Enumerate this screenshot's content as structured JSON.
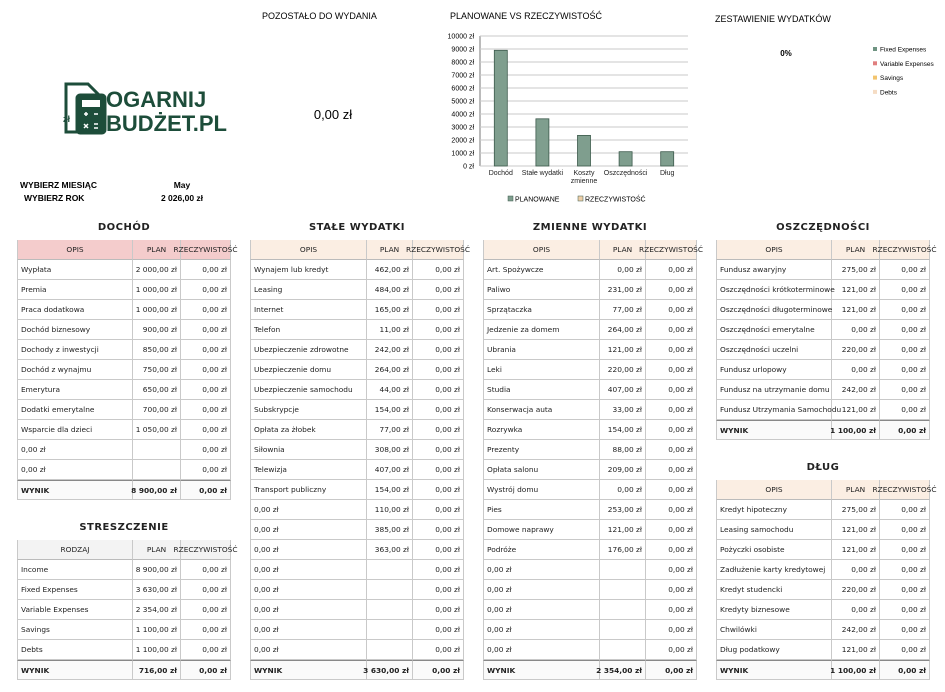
{
  "header": {
    "remaining_title": "POZOSTAŁO DO WYDANIA",
    "remaining_value": "0,00 zł",
    "month_label": "WYBIERZ MIESIĄC",
    "month": "May",
    "year_label": "WYBIERZ ROK",
    "year": "2 026,00 zł"
  },
  "logo": {
    "icon_text": "zł",
    "line1": "OGARNIJ",
    "line2": "BUDŻET.PL"
  },
  "chart_data": [
    {
      "type": "bar",
      "title": "PLANOWANE VS RZECZYWISTOŚĆ",
      "categories": [
        "Dochód",
        "Stałe wydatki",
        "Koszty zmienne",
        "Oszczędności",
        "Dług"
      ],
      "series": [
        {
          "name": "PLANOWANE",
          "color": "#7f9e8e",
          "values": [
            8900,
            3630,
            2354,
            1100,
            1100
          ]
        },
        {
          "name": "RZECZYWISTOŚĆ",
          "color": "#efcfa8",
          "values": [
            0,
            0,
            0,
            0,
            0
          ]
        }
      ],
      "ylim": [
        0,
        10000
      ],
      "yticks": [
        {
          "value": 0,
          "label": "0 zł"
        },
        {
          "value": 1000,
          "label": "1000 zł"
        },
        {
          "value": 2000,
          "label": "2000 zł"
        },
        {
          "value": 3000,
          "label": "3000 zł"
        },
        {
          "value": 4000,
          "label": "4000 zł"
        },
        {
          "value": 5000,
          "label": "5000 zł"
        },
        {
          "value": 6000,
          "label": "6000 zł"
        },
        {
          "value": 7000,
          "label": "7000 zł"
        },
        {
          "value": 8000,
          "label": "8000 zł"
        },
        {
          "value": 9000,
          "label": "9000 zł"
        },
        {
          "value": 10000,
          "label": "10000 zł"
        }
      ],
      "grid": true,
      "legend": "bottom"
    },
    {
      "type": "pie",
      "title": "ZESTAWIENIE WYDATKÓW",
      "categories": [
        "Fixed Expenses",
        "Variable Expenses",
        "Savings",
        "Debts"
      ],
      "values": [
        0,
        0,
        0,
        0
      ],
      "colors": [
        "#6f9482",
        "#e07f7f",
        "#f2c46e",
        "#f5dcc4"
      ],
      "center_label": "0%",
      "legend": "right"
    }
  ],
  "tables": [
    {
      "title": "DOCHÓD",
      "headers": [
        "OPIS",
        "PLAN",
        "RZECZYWISTOŚĆ"
      ],
      "rows": [
        [
          "Wypłata",
          "2 000,00 zł",
          "0,00 zł"
        ],
        [
          "Premia",
          "1 000,00 zł",
          "0,00 zł"
        ],
        [
          "Praca dodatkowa",
          "1 000,00 zł",
          "0,00 zł"
        ],
        [
          "Dochód biznesowy",
          "900,00 zł",
          "0,00 zł"
        ],
        [
          "Dochody z inwestycji",
          "850,00 zł",
          "0,00 zł"
        ],
        [
          "Dochód z wynajmu",
          "750,00 zł",
          "0,00 zł"
        ],
        [
          "Emerytura",
          "650,00 zł",
          "0,00 zł"
        ],
        [
          "Dodatki emerytalne",
          "700,00 zł",
          "0,00 zł"
        ],
        [
          "Wsparcie dla dzieci",
          "1 050,00 zł",
          "0,00 zł"
        ],
        [
          "0,00 zł",
          null,
          "0,00 zł"
        ],
        [
          "0,00 zł",
          null,
          "0,00 zł"
        ]
      ],
      "total": [
        "WYNIK",
        "8 900,00 zł",
        "0,00 zł"
      ]
    },
    {
      "title": "STRESZCZENIE",
      "headers": [
        "RODZAJ",
        "PLAN",
        "RZECZYWISTOŚĆ"
      ],
      "rows": [
        [
          "Income",
          "8 900,00 zł",
          "0,00 zł"
        ],
        [
          "Fixed Expenses",
          "3 630,00 zł",
          "0,00 zł"
        ],
        [
          "Variable Expenses",
          "2 354,00 zł",
          "0,00 zł"
        ],
        [
          "Savings",
          "1 100,00 zł",
          "0,00 zł"
        ],
        [
          "Debts",
          "1 100,00 zł",
          "0,00 zł"
        ]
      ],
      "total": [
        "WYNIK",
        "716,00 zł",
        "0,00 zł"
      ]
    },
    {
      "title": "STAŁE WYDATKI",
      "headers": [
        "OPIS",
        "PLAN",
        "RZECZYWISTOŚĆ"
      ],
      "rows": [
        [
          "Wynajem lub kredyt",
          "462,00 zł",
          "0,00 zł"
        ],
        [
          "Leasing",
          "484,00 zł",
          "0,00 zł"
        ],
        [
          "Internet",
          "165,00 zł",
          "0,00 zł"
        ],
        [
          "Telefon",
          "11,00 zł",
          "0,00 zł"
        ],
        [
          "Ubezpieczenie zdrowotne",
          "242,00 zł",
          "0,00 zł"
        ],
        [
          "Ubezpieczenie domu",
          "264,00 zł",
          "0,00 zł"
        ],
        [
          "Ubezpieczenie samochodu",
          "44,00 zł",
          "0,00 zł"
        ],
        [
          "Subskrypcje",
          "154,00 zł",
          "0,00 zł"
        ],
        [
          "Opłata za żłobek",
          "77,00 zł",
          "0,00 zł"
        ],
        [
          "Siłownia",
          "308,00 zł",
          "0,00 zł"
        ],
        [
          "Telewizja",
          "407,00 zł",
          "0,00 zł"
        ],
        [
          "Transport publiczny",
          "154,00 zł",
          "0,00 zł"
        ],
        [
          "0,00 zł",
          "110,00 zł",
          "0,00 zł"
        ],
        [
          "0,00 zł",
          "385,00 zł",
          "0,00 zł"
        ],
        [
          "0,00 zł",
          "363,00 zł",
          "0,00 zł"
        ],
        [
          "0,00 zł",
          null,
          "0,00 zł"
        ],
        [
          "0,00 zł",
          null,
          "0,00 zł"
        ],
        [
          "0,00 zł",
          null,
          "0,00 zł"
        ],
        [
          "0,00 zł",
          null,
          "0,00 zł"
        ],
        [
          "0,00 zł",
          null,
          "0,00 zł"
        ]
      ],
      "total": [
        "WYNIK",
        "3 630,00 zł",
        "0,00 zł"
      ]
    },
    {
      "title": "ZMIENNE WYDATKI",
      "headers": [
        "OPIS",
        "PLAN",
        "RZECZYWISTOŚĆ"
      ],
      "rows": [
        [
          "Art. Spożywcze",
          "0,00 zł",
          "0,00 zł"
        ],
        [
          "Paliwo",
          "231,00 zł",
          "0,00 zł"
        ],
        [
          "Sprzątaczka",
          "77,00 zł",
          "0,00 zł"
        ],
        [
          "Jedzenie za domem",
          "264,00 zł",
          "0,00 zł"
        ],
        [
          "Ubrania",
          "121,00 zł",
          "0,00 zł"
        ],
        [
          "Leki",
          "220,00 zł",
          "0,00 zł"
        ],
        [
          "Studia",
          "407,00 zł",
          "0,00 zł"
        ],
        [
          "Konserwacja auta",
          "33,00 zł",
          "0,00 zł"
        ],
        [
          "Rozrywka",
          "154,00 zł",
          "0,00 zł"
        ],
        [
          "Prezenty",
          "88,00 zł",
          "0,00 zł"
        ],
        [
          "Opłata salonu",
          "209,00 zł",
          "0,00 zł"
        ],
        [
          "Wystrój domu",
          "0,00 zł",
          "0,00 zł"
        ],
        [
          "Pies",
          "253,00 zł",
          "0,00 zł"
        ],
        [
          "Domowe naprawy",
          "121,00 zł",
          "0,00 zł"
        ],
        [
          "Podróże",
          "176,00 zł",
          "0,00 zł"
        ],
        [
          "0,00 zł",
          null,
          "0,00 zł"
        ],
        [
          "0,00 zł",
          null,
          "0,00 zł"
        ],
        [
          "0,00 zł",
          null,
          "0,00 zł"
        ],
        [
          "0,00 zł",
          null,
          "0,00 zł"
        ],
        [
          "0,00 zł",
          null,
          "0,00 zł"
        ]
      ],
      "total": [
        "WYNIK",
        "2 354,00 zł",
        "0,00 zł"
      ]
    },
    {
      "title": "OSZCZĘDNOŚCI",
      "headers": [
        "OPIS",
        "PLAN",
        "RZECZYWISTOŚĆ"
      ],
      "rows": [
        [
          "Fundusz awaryjny",
          "275,00 zł",
          "0,00 zł"
        ],
        [
          "Oszczędności krótkoterminowe",
          "121,00 zł",
          "0,00 zł"
        ],
        [
          "Oszczędności długoterminowe",
          "121,00 zł",
          "0,00 zł"
        ],
        [
          "Oszczędności emerytalne",
          "0,00 zł",
          "0,00 zł"
        ],
        [
          "Oszczędności uczelni",
          "220,00 zł",
          "0,00 zł"
        ],
        [
          "Fundusz urlopowy",
          "0,00 zł",
          "0,00 zł"
        ],
        [
          "Fundusz na utrzymanie domu",
          "242,00 zł",
          "0,00 zł"
        ],
        [
          "Fundusz Utrzymania Samochodu",
          "121,00 zł",
          "0,00 zł"
        ]
      ],
      "total": [
        "WYNIK",
        "1 100,00 zł",
        "0,00 zł"
      ]
    },
    {
      "title": "DŁUG",
      "headers": [
        "OPIS",
        "PLAN",
        "RZECZYWISTOŚĆ"
      ],
      "rows": [
        [
          "Kredyt hipoteczny",
          "275,00 zł",
          "0,00 zł"
        ],
        [
          "Leasing samochodu",
          "121,00 zł",
          "0,00 zł"
        ],
        [
          "Pożyczki osobiste",
          "121,00 zł",
          "0,00 zł"
        ],
        [
          "Zadłużenie karty kredytowej",
          "0,00 zł",
          "0,00 zł"
        ],
        [
          "Kredyt studencki",
          "220,00 zł",
          "0,00 zł"
        ],
        [
          "Kredyty biznesowe",
          "0,00 zł",
          "0,00 zł"
        ],
        [
          "Chwilówki",
          "242,00 zł",
          "0,00 zł"
        ],
        [
          "Dług podatkowy",
          "121,00 zł",
          "0,00 zł"
        ]
      ],
      "total": [
        "WYNIK",
        "1 100,00 zł",
        "0,00 zł"
      ]
    }
  ]
}
